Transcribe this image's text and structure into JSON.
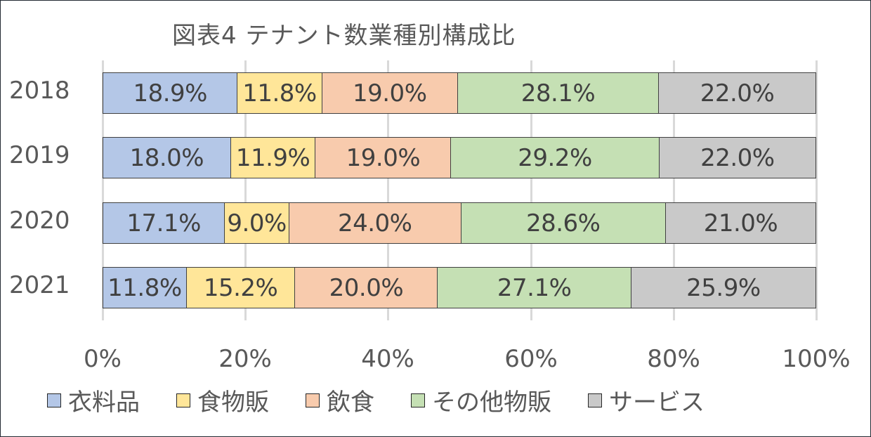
{
  "chart_data": {
    "type": "bar",
    "orientation": "horizontal",
    "stacked": "percent",
    "title": "図表4 テナント数業種別構成比",
    "categories": [
      "2018",
      "2019",
      "2020",
      "2021"
    ],
    "series": [
      {
        "name": "衣料品",
        "color": "#b4c7e7",
        "values": [
          18.9,
          18.0,
          17.1,
          11.8
        ],
        "labels": [
          "18.9%",
          "18.0%",
          "17.1%",
          "11.8%"
        ]
      },
      {
        "name": "食物販",
        "color": "#ffe699",
        "values": [
          11.8,
          11.9,
          9.0,
          15.2
        ],
        "labels": [
          "11.8%",
          "11.9%",
          "9.0%",
          "15.2%"
        ]
      },
      {
        "name": "飲食",
        "color": "#f8cbad",
        "values": [
          19.0,
          19.0,
          24.0,
          20.0
        ],
        "labels": [
          "19.0%",
          "19.0%",
          "24.0%",
          "20.0%"
        ]
      },
      {
        "name": "その他物販",
        "color": "#c5e0b4",
        "values": [
          28.1,
          29.2,
          28.6,
          27.1
        ],
        "labels": [
          "28.1%",
          "29.2%",
          "28.6%",
          "27.1%"
        ]
      },
      {
        "name": "サービス",
        "color": "#c9c9c9",
        "values": [
          22.0,
          22.0,
          21.0,
          25.9
        ],
        "labels": [
          "22.0%",
          "22.0%",
          "21.0%",
          "25.9%"
        ]
      }
    ],
    "xlabel": "",
    "ylabel": "",
    "xlim": [
      0,
      100
    ],
    "xticks": [
      "0%",
      "20%",
      "40%",
      "60%",
      "80%",
      "100%"
    ],
    "grid": true,
    "legend_position": "bottom"
  }
}
